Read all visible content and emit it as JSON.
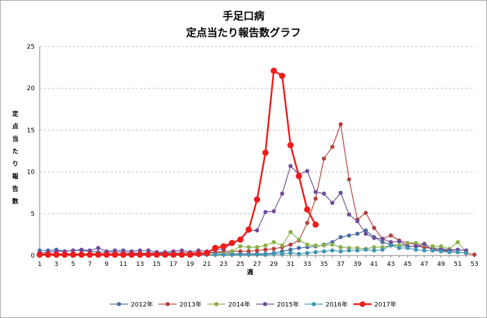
{
  "chart_data": {
    "type": "line",
    "title": "手足口病",
    "subtitle": "定点当たり報告数グラフ",
    "xlabel": "週",
    "ylabel": "定点当たり報告数",
    "ylim": [
      0,
      25
    ],
    "yticks": [
      "0",
      "5",
      "10",
      "15",
      "20",
      "25"
    ],
    "xlim": [
      1,
      53
    ],
    "xticks": [
      "1",
      "3",
      "5",
      "7",
      "9",
      "11",
      "13",
      "15",
      "17",
      "19",
      "21",
      "23",
      "25",
      "27",
      "29",
      "31",
      "33",
      "35",
      "37",
      "39",
      "41",
      "43",
      "45",
      "47",
      "49",
      "51",
      "53"
    ],
    "grid": "horizontal dashed",
    "legend_position": "bottom",
    "series": [
      {
        "name": "2012年",
        "color": "#4a6fa5",
        "width": 1.2,
        "marker": 3,
        "x": [
          1,
          2,
          3,
          4,
          5,
          6,
          7,
          8,
          9,
          10,
          11,
          12,
          13,
          14,
          15,
          16,
          17,
          18,
          19,
          20,
          21,
          22,
          23,
          24,
          25,
          26,
          27,
          28,
          29,
          30,
          31,
          32,
          33,
          34,
          35,
          36,
          37,
          38,
          39,
          40,
          41,
          42,
          43,
          44,
          45,
          46,
          47,
          48,
          49,
          50,
          51,
          52
        ],
        "values": [
          0.6,
          0.6,
          0.7,
          0.5,
          0.6,
          0.6,
          0.5,
          0.4,
          0.4,
          0.4,
          0.4,
          0.3,
          0.3,
          0.3,
          0.3,
          0.3,
          0.3,
          0.3,
          0.3,
          0.3,
          0.3,
          0.3,
          0.3,
          0.2,
          0.2,
          0.2,
          0.2,
          0.2,
          0.3,
          0.5,
          0.7,
          0.9,
          1.0,
          1.1,
          1.3,
          1.6,
          2.2,
          2.4,
          2.6,
          3.0,
          2.2,
          1.6,
          1.3,
          1.2,
          1.1,
          1.1,
          1.0,
          0.9,
          0.8,
          0.7,
          0.7,
          0.6
        ]
      },
      {
        "name": "2013年",
        "color": "#b5403c",
        "width": 1.2,
        "marker": 3,
        "x": [
          1,
          2,
          3,
          4,
          5,
          6,
          7,
          8,
          9,
          10,
          11,
          12,
          13,
          14,
          15,
          16,
          17,
          18,
          19,
          20,
          21,
          22,
          23,
          24,
          25,
          26,
          27,
          28,
          29,
          30,
          31,
          32,
          33,
          34,
          35,
          36,
          37,
          38,
          39,
          40,
          41,
          42,
          43,
          44,
          45,
          46,
          47,
          48,
          49,
          50,
          51,
          52,
          53
        ],
        "values": [
          0.2,
          0.2,
          0.2,
          0.2,
          0.2,
          0.2,
          0.2,
          0.2,
          0.2,
          0.2,
          0.2,
          0.2,
          0.2,
          0.2,
          0.2,
          0.2,
          0.2,
          0.3,
          0.3,
          0.3,
          0.3,
          0.4,
          0.5,
          0.5,
          0.5,
          0.5,
          0.6,
          0.7,
          0.8,
          1.0,
          1.3,
          1.8,
          3.9,
          6.8,
          11.6,
          13.0,
          15.7,
          9.1,
          4.3,
          5.1,
          3.3,
          2.0,
          2.4,
          1.8,
          1.5,
          1.3,
          1.0,
          0.8,
          0.6,
          0.5,
          0.4,
          0.3,
          0.1
        ]
      },
      {
        "name": "2014年",
        "color": "#8cb04a",
        "width": 1.2,
        "marker": 3,
        "x": [
          1,
          2,
          3,
          4,
          5,
          6,
          7,
          8,
          9,
          10,
          11,
          12,
          13,
          14,
          15,
          16,
          17,
          18,
          19,
          20,
          21,
          22,
          23,
          24,
          25,
          26,
          27,
          28,
          29,
          30,
          31,
          32,
          33,
          34,
          35,
          36,
          37,
          38,
          39,
          40,
          41,
          42,
          43,
          44,
          45,
          46,
          47,
          48,
          49,
          50,
          51,
          52
        ],
        "values": [
          0.1,
          0.1,
          0.1,
          0.1,
          0.1,
          0.1,
          0.1,
          0.1,
          0.1,
          0.1,
          0.1,
          0.1,
          0.1,
          0.1,
          0.1,
          0.1,
          0.1,
          0.1,
          0.1,
          0.1,
          0.1,
          0.1,
          0.2,
          0.5,
          1.1,
          1.0,
          1.0,
          1.2,
          1.6,
          1.2,
          2.8,
          1.9,
          1.3,
          1.2,
          1.2,
          1.3,
          1.0,
          0.9,
          0.9,
          0.8,
          1.0,
          1.0,
          1.2,
          1.2,
          1.5,
          1.5,
          1.3,
          1.1,
          1.1,
          0.8,
          1.6,
          0.4
        ]
      },
      {
        "name": "2015年",
        "color": "#6f4d9a",
        "width": 1.2,
        "marker": 3,
        "x": [
          1,
          2,
          3,
          4,
          5,
          6,
          7,
          8,
          9,
          10,
          11,
          12,
          13,
          14,
          15,
          16,
          17,
          18,
          19,
          20,
          21,
          22,
          23,
          24,
          25,
          26,
          27,
          28,
          29,
          30,
          31,
          32,
          33,
          34,
          35,
          36,
          37,
          38,
          39,
          40,
          41,
          42,
          43,
          44,
          45,
          46,
          47,
          48,
          49,
          50,
          51,
          52
        ],
        "values": [
          0.3,
          0.4,
          0.5,
          0.5,
          0.6,
          0.7,
          0.6,
          0.9,
          0.5,
          0.6,
          0.6,
          0.5,
          0.6,
          0.6,
          0.4,
          0.4,
          0.5,
          0.6,
          0.4,
          0.6,
          0.5,
          0.7,
          0.8,
          1.4,
          2.0,
          3.0,
          3.0,
          5.2,
          5.3,
          7.4,
          10.7,
          9.7,
          10.1,
          7.6,
          7.4,
          6.3,
          7.5,
          4.9,
          4.1,
          2.6,
          2.1,
          2.0,
          1.6,
          1.7,
          1.1,
          1.1,
          1.4,
          0.6,
          0.7,
          0.6,
          0.7,
          0.6
        ]
      },
      {
        "name": "2016年",
        "color": "#3f97b3",
        "width": 1.2,
        "marker": 3,
        "x": [
          1,
          2,
          3,
          4,
          5,
          6,
          7,
          8,
          9,
          10,
          11,
          12,
          13,
          14,
          15,
          16,
          17,
          18,
          19,
          20,
          21,
          22,
          23,
          24,
          25,
          26,
          27,
          28,
          29,
          30,
          31,
          32,
          33,
          34,
          35,
          36,
          37,
          38,
          39,
          40,
          41,
          42,
          43,
          44,
          45,
          46,
          47,
          48,
          49,
          50,
          51,
          52
        ],
        "values": [
          0.1,
          0.1,
          0.1,
          0.1,
          0.1,
          0.1,
          0.1,
          0.1,
          0.1,
          0.1,
          0.1,
          0.1,
          0.1,
          0.1,
          0.1,
          0.1,
          0.1,
          0.1,
          0.1,
          0.1,
          0.1,
          0.1,
          0.1,
          0.1,
          0.1,
          0.1,
          0.1,
          0.1,
          0.2,
          0.2,
          0.3,
          0.2,
          0.3,
          0.4,
          0.5,
          0.6,
          0.5,
          0.6,
          0.6,
          0.7,
          0.6,
          0.7,
          1.2,
          0.9,
          0.9,
          0.7,
          0.6,
          0.6,
          0.5,
          0.4,
          0.4,
          0.3
        ]
      },
      {
        "name": "2017年",
        "color": "#ee1c1c",
        "width": 2.5,
        "marker": 4.5,
        "x": [
          1,
          2,
          3,
          4,
          5,
          6,
          7,
          8,
          9,
          10,
          11,
          12,
          13,
          14,
          15,
          16,
          17,
          18,
          19,
          20,
          21,
          22,
          23,
          24,
          25,
          26,
          27,
          28,
          29,
          30,
          31,
          32,
          33,
          34
        ],
        "values": [
          0.1,
          0.1,
          0.1,
          0.1,
          0.1,
          0.1,
          0.1,
          0.1,
          0.1,
          0.1,
          0.1,
          0.1,
          0.1,
          0.1,
          0.1,
          0.1,
          0.1,
          0.1,
          0.1,
          0.2,
          0.3,
          0.9,
          1.1,
          1.5,
          1.9,
          3.1,
          6.7,
          12.3,
          22.1,
          21.5,
          13.2,
          9.5,
          5.5,
          3.7
        ]
      }
    ]
  }
}
